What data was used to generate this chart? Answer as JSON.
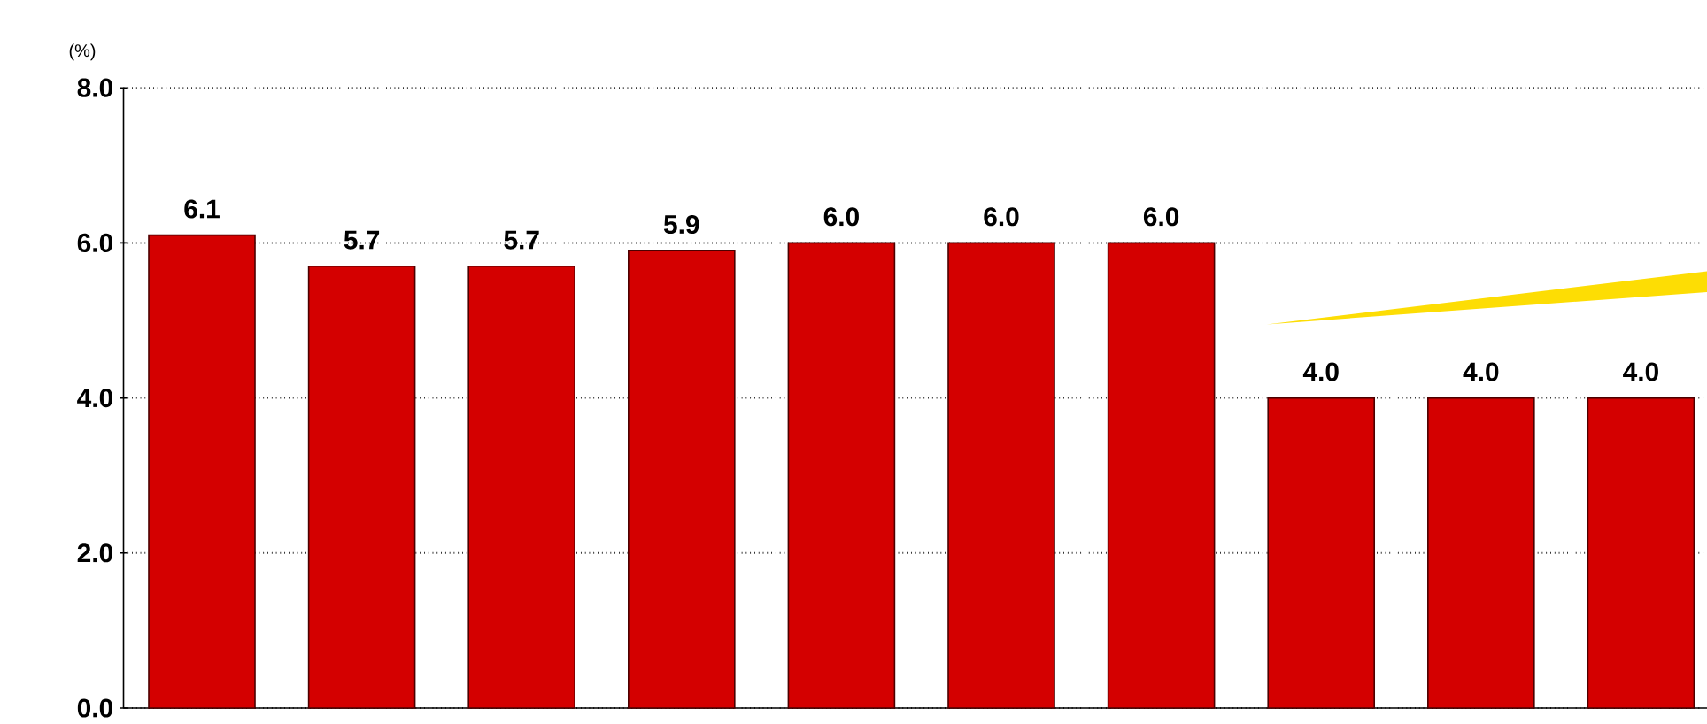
{
  "chart_data": {
    "type": "bar",
    "ylabel": "(%)",
    "categories": [
      null,
      null,
      null,
      null,
      null,
      null,
      null,
      null,
      null,
      null
    ],
    "values": [
      6.1,
      5.7,
      5.7,
      5.9,
      6.0,
      6.0,
      6.0,
      4.0,
      4.0,
      4.0
    ],
    "color": "#d40000",
    "ylim": [
      0,
      8
    ],
    "yticks": [
      {
        "value": 0,
        "label": "0.0"
      },
      {
        "value": 2,
        "label": "2.0"
      },
      {
        "value": 4,
        "label": "4.0"
      },
      {
        "value": 6,
        "label": "6.0"
      },
      {
        "value": 8,
        "label": "8.0"
      }
    ],
    "grid": "y",
    "value_labels": [
      "6.1",
      "5.7",
      "5.7",
      "5.9",
      "6.0",
      "6.0",
      "6.0",
      "4.0",
      "4.0",
      "4.0"
    ]
  }
}
